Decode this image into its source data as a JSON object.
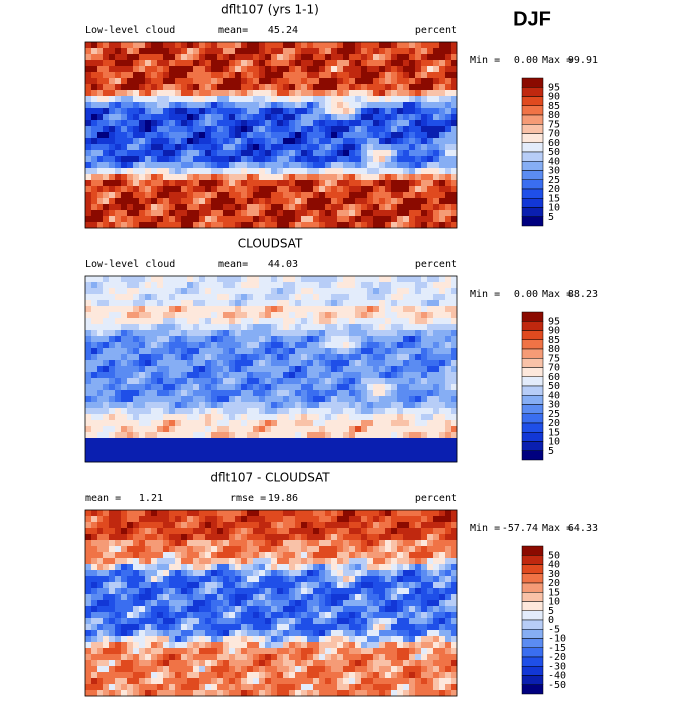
{
  "heading": "DJF",
  "panels": [
    {
      "title": "dflt107 (yrs 1-1)",
      "left": "Low-level cloud",
      "mid_label": "mean=",
      "mid_value": "45.24",
      "unit": "percent",
      "min_label": "Min =",
      "min": "0.00",
      "max_label": "Max =",
      "max": "99.91",
      "levels": [
        95,
        90,
        85,
        80,
        75,
        70,
        60,
        50,
        40,
        30,
        25,
        20,
        15,
        10,
        5
      ]
    },
    {
      "title": "CLOUDSAT",
      "left": "Low-level cloud",
      "mid_label": "mean=",
      "mid_value": "44.03",
      "unit": "percent",
      "min_label": "Min =",
      "min": "0.00",
      "max_label": "Max =",
      "max": "88.23",
      "levels": [
        95,
        90,
        85,
        80,
        75,
        70,
        60,
        50,
        40,
        30,
        25,
        20,
        15,
        10,
        5
      ]
    },
    {
      "title": "dflt107 - CLOUDSAT",
      "left_label": "mean =",
      "left_value": "1.21",
      "mid_label": "rmse =",
      "mid_value": "19.86",
      "unit": "percent",
      "min_label": "Min =",
      "min": "-57.74",
      "max_label": "Max =",
      "max": "64.33",
      "levels": [
        50,
        40,
        30,
        20,
        15,
        10,
        5,
        0,
        -5,
        -10,
        -15,
        -20,
        -30,
        -40,
        -50
      ]
    }
  ]
}
